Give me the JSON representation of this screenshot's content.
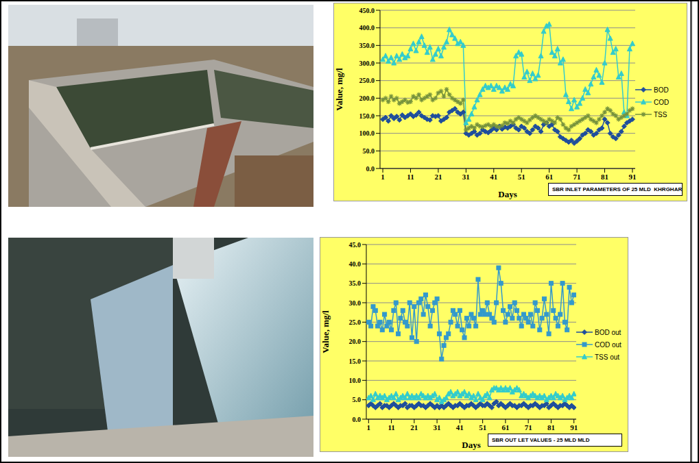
{
  "chart_data": [
    {
      "type": "line",
      "title": "SBR INLET PARAMETERS OF 25 MLD  KHRGHAR",
      "x_label": "Days",
      "y_label": "Value, mg/l",
      "x": [
        1,
        2,
        3,
        4,
        5,
        6,
        7,
        8,
        9,
        10,
        11,
        12,
        13,
        14,
        15,
        16,
        17,
        18,
        19,
        20,
        21,
        22,
        23,
        24,
        25,
        26,
        27,
        28,
        29,
        30,
        31,
        32,
        33,
        34,
        35,
        36,
        37,
        38,
        39,
        40,
        41,
        42,
        43,
        44,
        45,
        46,
        47,
        48,
        49,
        50,
        51,
        52,
        53,
        54,
        55,
        56,
        57,
        58,
        59,
        60,
        61,
        62,
        63,
        64,
        65,
        66,
        67,
        68,
        69,
        70,
        71,
        72,
        73,
        74,
        75,
        76,
        77,
        78,
        79,
        80,
        81,
        82,
        83,
        84,
        85,
        86,
        87,
        88,
        89,
        90,
        91
      ],
      "xlim": [
        0,
        92
      ],
      "xticks": [
        1,
        11,
        21,
        31,
        41,
        51,
        61,
        71,
        81,
        91
      ],
      "ylim": [
        0,
        450
      ],
      "yticks": [
        {
          "value": 0,
          "label": "0.0"
        },
        {
          "value": 50,
          "label": "50.0"
        },
        {
          "value": 100,
          "label": "100.0"
        },
        {
          "value": 150,
          "label": "150.0"
        },
        {
          "value": 200,
          "label": "200.0"
        },
        {
          "value": 250,
          "label": "250.0"
        },
        {
          "value": 300,
          "label": "300.0"
        },
        {
          "value": 350,
          "label": "350.0"
        },
        {
          "value": 400,
          "label": "400.0"
        },
        {
          "value": 450,
          "label": "450.0"
        }
      ],
      "grid": true,
      "legend": "right",
      "series": [
        {
          "name": "BOD",
          "color": "#1f4e9c",
          "marker": "diamond",
          "values": [
            140,
            145,
            135,
            150,
            142,
            148,
            138,
            152,
            145,
            150,
            155,
            148,
            152,
            160,
            150,
            145,
            140,
            138,
            150,
            148,
            150,
            135,
            140,
            145,
            160,
            165,
            170,
            160,
            155,
            160,
            100,
            95,
            100,
            105,
            95,
            100,
            110,
            105,
            102,
            108,
            115,
            110,
            120,
            112,
            118,
            115,
            120,
            125,
            115,
            110,
            120,
            115,
            105,
            100,
            110,
            120,
            115,
            105,
            125,
            130,
            120,
            125,
            110,
            105,
            90,
            85,
            80,
            75,
            80,
            72,
            78,
            85,
            95,
            100,
            110,
            105,
            95,
            100,
            110,
            115,
            140,
            130,
            100,
            90,
            85,
            95,
            105,
            120,
            130,
            135,
            140
          ]
        },
        {
          "name": "COD",
          "color": "#33cccc",
          "marker": "triangle",
          "values": [
            310,
            320,
            305,
            315,
            300,
            320,
            310,
            325,
            315,
            320,
            340,
            355,
            335,
            360,
            375,
            350,
            330,
            345,
            310,
            325,
            340,
            320,
            345,
            360,
            395,
            380,
            370,
            355,
            360,
            350,
            130,
            140,
            155,
            175,
            195,
            210,
            225,
            235,
            230,
            235,
            225,
            235,
            230,
            220,
            230,
            225,
            240,
            235,
            320,
            330,
            325,
            260,
            275,
            250,
            270,
            255,
            265,
            320,
            390,
            405,
            410,
            330,
            320,
            340,
            300,
            310,
            210,
            190,
            170,
            195,
            175,
            185,
            200,
            225,
            215,
            240,
            260,
            280,
            265,
            245,
            300,
            395,
            370,
            330,
            340,
            260,
            270,
            160,
            150,
            340,
            355
          ]
        },
        {
          "name": "TSS",
          "color": "#77933c",
          "marker": "star",
          "values": [
            195,
            200,
            190,
            205,
            195,
            200,
            185,
            190,
            195,
            188,
            190,
            205,
            200,
            210,
            195,
            200,
            205,
            210,
            195,
            200,
            215,
            220,
            205,
            225,
            210,
            200,
            195,
            190,
            185,
            195,
            110,
            115,
            120,
            115,
            125,
            120,
            118,
            122,
            125,
            120,
            125,
            120,
            118,
            122,
            130,
            128,
            135,
            130,
            140,
            145,
            140,
            135,
            130,
            138,
            145,
            150,
            145,
            140,
            135,
            130,
            140,
            135,
            130,
            145,
            140,
            125,
            115,
            110,
            120,
            125,
            130,
            135,
            140,
            145,
            150,
            140,
            135,
            130,
            140,
            150,
            160,
            170,
            165,
            155,
            150,
            140,
            145,
            150,
            155,
            165,
            170
          ]
        }
      ]
    },
    {
      "type": "line",
      "title": "SBR OUT LET VALUES - 25 MLD MLD",
      "x_label": "Days",
      "y_label": "Value, mg/l",
      "x": [
        1,
        2,
        3,
        4,
        5,
        6,
        7,
        8,
        9,
        10,
        11,
        12,
        13,
        14,
        15,
        16,
        17,
        18,
        19,
        20,
        21,
        22,
        23,
        24,
        25,
        26,
        27,
        28,
        29,
        30,
        31,
        32,
        33,
        34,
        35,
        36,
        37,
        38,
        39,
        40,
        41,
        42,
        43,
        44,
        45,
        46,
        47,
        48,
        49,
        50,
        51,
        52,
        53,
        54,
        55,
        56,
        57,
        58,
        59,
        60,
        61,
        62,
        63,
        64,
        65,
        66,
        67,
        68,
        69,
        70,
        71,
        72,
        73,
        74,
        75,
        76,
        77,
        78,
        79,
        80,
        81,
        82,
        83,
        84,
        85,
        86,
        87,
        88,
        89,
        90,
        91
      ],
      "xlim": [
        0,
        92
      ],
      "xticks": [
        1,
        11,
        21,
        31,
        41,
        51,
        61,
        71,
        81,
        91
      ],
      "ylim": [
        0,
        45
      ],
      "yticks": [
        {
          "value": 0,
          "label": "0.0"
        },
        {
          "value": 5,
          "label": "5.0"
        },
        {
          "value": 10,
          "label": "10.0"
        },
        {
          "value": 15,
          "label": "15.0"
        },
        {
          "value": 20,
          "label": "20.0"
        },
        {
          "value": 25,
          "label": "25.0"
        },
        {
          "value": 30,
          "label": "30.0"
        },
        {
          "value": 35,
          "label": "35.0"
        },
        {
          "value": 40,
          "label": "40.0"
        },
        {
          "value": 45,
          "label": "45.0"
        }
      ],
      "grid": true,
      "legend": "right",
      "series": [
        {
          "name": "BOD out",
          "color": "#1f4e9c",
          "marker": "diamond",
          "values": [
            3.5,
            4.0,
            3.5,
            3.0,
            3.5,
            4.0,
            3.0,
            3.5,
            3.5,
            3.0,
            3.5,
            4.0,
            3.5,
            3.0,
            3.5,
            3.5,
            4.0,
            3.0,
            3.5,
            3.5,
            3.0,
            3.5,
            4.0,
            3.5,
            3.5,
            3.0,
            3.5,
            4.0,
            3.5,
            3.0,
            3.5,
            3.0,
            3.5,
            3.0,
            3.5,
            4.0,
            3.5,
            3.0,
            3.5,
            3.5,
            4.0,
            3.5,
            3.0,
            3.5,
            3.5,
            4.0,
            3.5,
            3.0,
            3.5,
            4.0,
            3.5,
            3.5,
            4.0,
            3.5,
            3.0,
            4.0,
            4.5,
            3.5,
            4.0,
            3.5,
            3.0,
            3.5,
            4.0,
            3.5,
            3.5,
            3.0,
            3.5,
            3.5,
            4.0,
            3.5,
            3.0,
            3.5,
            3.5,
            4.0,
            3.5,
            3.0,
            3.5,
            3.5,
            4.0,
            3.0,
            3.5,
            4.0,
            3.5,
            3.0,
            3.5,
            3.5,
            4.0,
            3.5,
            3.0,
            3.5,
            3.0
          ]
        },
        {
          "name": "COD out",
          "color": "#3399cc",
          "marker": "square",
          "values": [
            25,
            24,
            29,
            28,
            24,
            25,
            23,
            27,
            24,
            25,
            23,
            28,
            30,
            22,
            26,
            28,
            25,
            24,
            30,
            21,
            29,
            20,
            30,
            31,
            27,
            32,
            29,
            24,
            28,
            30,
            31,
            22,
            15.5,
            19,
            21,
            22,
            25,
            28,
            27,
            24,
            28,
            23,
            21,
            26,
            24,
            27,
            26,
            24,
            36,
            27,
            28,
            27,
            30,
            27,
            26,
            25,
            30,
            39,
            35,
            28,
            25,
            27,
            29,
            26,
            30,
            28,
            26,
            24,
            27,
            26,
            25,
            27,
            24,
            30,
            28,
            23,
            26,
            31,
            27,
            22,
            35,
            28,
            26,
            24,
            27,
            35,
            25,
            23,
            34,
            30,
            32
          ]
        },
        {
          "name": "TSS out",
          "color": "#33cccc",
          "marker": "triangle",
          "values": [
            5.5,
            6.0,
            5.0,
            6.5,
            5.5,
            6.0,
            5.5,
            6.0,
            5.0,
            5.5,
            6.0,
            5.5,
            6.5,
            5.0,
            5.5,
            6.0,
            5.5,
            6.5,
            5.5,
            6.0,
            5.5,
            6.0,
            5.5,
            6.5,
            6.0,
            5.5,
            6.0,
            5.5,
            6.0,
            6.5,
            5.0,
            5.5,
            4.5,
            5.0,
            5.5,
            6.5,
            7.0,
            6.0,
            6.5,
            7.0,
            6.0,
            6.5,
            7.0,
            6.0,
            6.5,
            5.5,
            6.0,
            5.0,
            6.5,
            5.5,
            5.0,
            6.0,
            6.5,
            5.5,
            7.5,
            8.0,
            8.0,
            7.5,
            8.0,
            7.5,
            8.0,
            7.5,
            8.0,
            7.0,
            7.5,
            8.0,
            7.5,
            6.0,
            6.5,
            6.0,
            5.5,
            6.0,
            6.5,
            6.0,
            5.5,
            6.0,
            5.5,
            6.0,
            5.0,
            5.5,
            6.0,
            5.5,
            6.5,
            6.0,
            5.5,
            6.0,
            5.0,
            5.5,
            6.0,
            5.5,
            6.5
          ]
        }
      ]
    }
  ]
}
